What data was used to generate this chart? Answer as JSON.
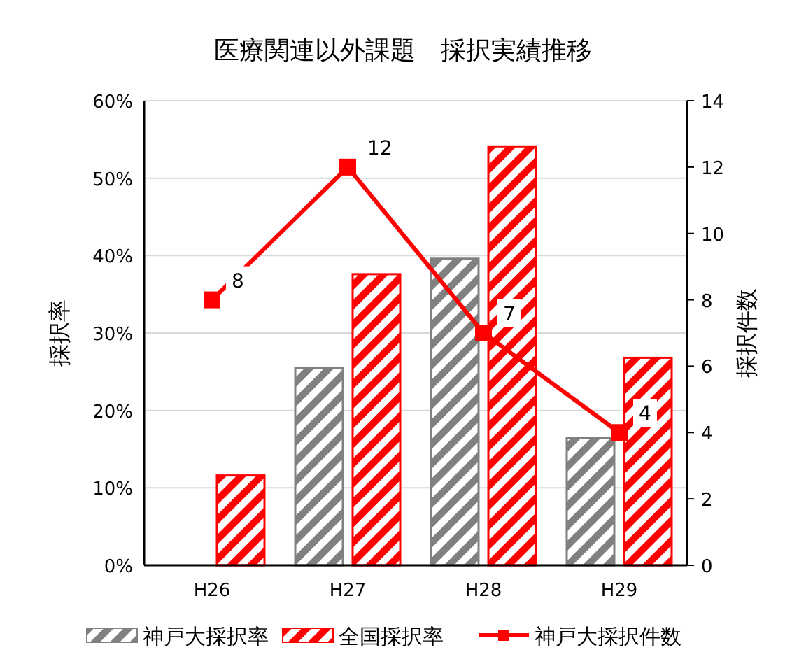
{
  "chart_data": {
    "type": "bar",
    "title": "医療関連以外課題　採択実績推移",
    "categories": [
      "H26",
      "H27",
      "H28",
      "H29"
    ],
    "series": [
      {
        "name": "神戸大採択率",
        "color": "#808080",
        "values": [
          null,
          25.5,
          39.6,
          16.4
        ]
      },
      {
        "name": "全国採択率",
        "color": "#ff0000",
        "values": [
          11.6,
          37.6,
          54.1,
          26.8
        ]
      },
      {
        "name": "神戸大採択件数",
        "type": "line",
        "axis": "y2",
        "color": "#ff0000",
        "values": [
          8,
          12,
          7,
          4
        ],
        "value_labels": [
          "8",
          "12",
          "7",
          "4"
        ]
      }
    ],
    "ylabel": "採択率",
    "y2label": "採択件数",
    "ylim": [
      0,
      60
    ],
    "yticks": [
      {
        "value": 0,
        "label": "0%"
      },
      {
        "value": 10,
        "label": "10%"
      },
      {
        "value": 20,
        "label": "20%"
      },
      {
        "value": 30,
        "label": "30%"
      },
      {
        "value": 40,
        "label": "40%"
      },
      {
        "value": 50,
        "label": "50%"
      },
      {
        "value": 60,
        "label": "60%"
      }
    ],
    "y2lim": [
      0,
      14
    ],
    "y2ticks": [
      0,
      2,
      4,
      6,
      8,
      10,
      12,
      14
    ],
    "grid": "y",
    "legend": "bottom",
    "marker": "square"
  }
}
